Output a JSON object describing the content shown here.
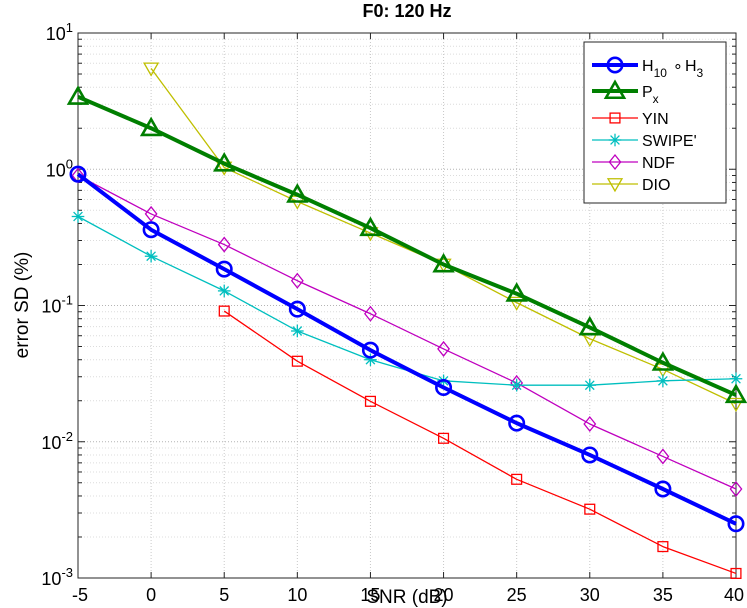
{
  "chart_data": {
    "type": "line",
    "title": "F0: 120 Hz",
    "xlabel": "SNR (dB)",
    "ylabel": "error SD (%)",
    "yscale": "log",
    "xlim": [
      -5,
      40
    ],
    "ylim": [
      0.001,
      10
    ],
    "grid": true,
    "legend_position": "top-right",
    "x": [
      -5,
      0,
      5,
      10,
      15,
      20,
      25,
      30,
      35,
      40
    ],
    "x_tick_labels": [
      "-5",
      "0",
      "5",
      "10",
      "15",
      "20",
      "25",
      "30",
      "35",
      "40"
    ],
    "y_ticks": [
      {
        "value": 0.001,
        "base": "10",
        "exp": "-3"
      },
      {
        "value": 0.01,
        "base": "10",
        "exp": "-2"
      },
      {
        "value": 0.1,
        "base": "10",
        "exp": "-1"
      },
      {
        "value": 1,
        "base": "10",
        "exp": "0"
      },
      {
        "value": 10,
        "base": "10",
        "exp": "1"
      }
    ],
    "series": [
      {
        "name": "H10 ∘ H3",
        "legend": {
          "a": "H",
          "a_sub": "10",
          "mid": "∘",
          "b": "H",
          "b_sub": "3"
        },
        "color": "#0000ff",
        "marker": "circle",
        "thick": true,
        "values": [
          0.92,
          0.36,
          0.185,
          0.094,
          0.047,
          0.025,
          0.0137,
          0.008,
          0.0045,
          0.0025
        ]
      },
      {
        "name": "Px",
        "legend": {
          "a": "P",
          "a_sub": "x"
        },
        "color": "#007f00",
        "marker": "triangle-up",
        "thick": true,
        "values": [
          3.4,
          2.0,
          1.1,
          0.65,
          0.37,
          0.2,
          0.122,
          0.069,
          0.038,
          0.022
        ]
      },
      {
        "name": "YIN",
        "legend": {
          "a": "YIN"
        },
        "color": "#ff0000",
        "marker": "square",
        "thick": false,
        "values": [
          null,
          null,
          0.091,
          0.039,
          0.0198,
          0.0106,
          0.0053,
          0.0032,
          0.0017,
          0.00108
        ]
      },
      {
        "name": "SWIPE'",
        "legend": {
          "a": "SWIPE'"
        },
        "color": "#00bfbf",
        "marker": "asterisk",
        "thick": false,
        "values": [
          0.45,
          0.23,
          0.128,
          0.065,
          0.04,
          0.028,
          0.026,
          0.026,
          0.028,
          0.029
        ]
      },
      {
        "name": "NDF",
        "legend": {
          "a": "NDF"
        },
        "color": "#bf00bf",
        "marker": "diamond",
        "thick": false,
        "values": [
          0.9,
          0.47,
          0.28,
          0.152,
          0.087,
          0.048,
          0.027,
          0.0135,
          0.0078,
          0.0045
        ]
      },
      {
        "name": "DIO",
        "legend": {
          "a": "DIO"
        },
        "color": "#bfbf00",
        "marker": "triangle-down",
        "thick": false,
        "values": [
          null,
          5.5,
          1.03,
          0.58,
          0.34,
          0.2,
          0.105,
          0.057,
          0.034,
          0.019
        ]
      }
    ]
  }
}
